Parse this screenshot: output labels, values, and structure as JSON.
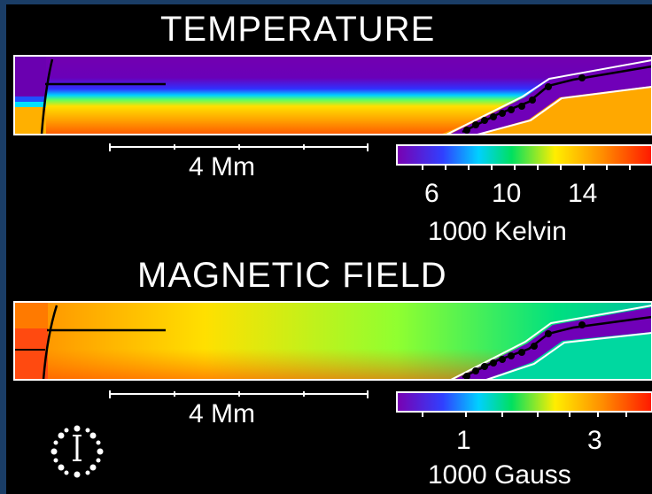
{
  "panels": {
    "temperature": {
      "title": "TEMPERATURE",
      "scale_label": "4 Mm",
      "colorbar": {
        "ticks": [
          "6",
          "10",
          "14"
        ],
        "unit": "1000 Kelvin"
      }
    },
    "magnetic": {
      "title": "MAGNETIC FIELD",
      "scale_label": "4 Mm",
      "colorbar": {
        "ticks": [
          "1",
          "3"
        ],
        "unit": "1000 Gauss"
      }
    }
  },
  "colors": {
    "background": "#000000",
    "border": "#1a3d66",
    "text": "#ffffff",
    "scale": [
      "#6a00a8",
      "#2233ff",
      "#00ccff",
      "#00e060",
      "#ffee00",
      "#ff8800",
      "#ff1500"
    ]
  },
  "icons": {
    "timer": "clock-icon"
  }
}
